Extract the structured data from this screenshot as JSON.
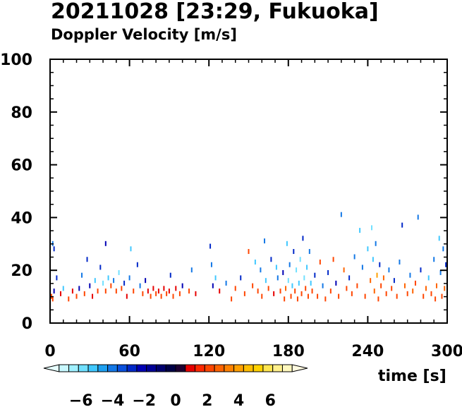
{
  "chart_data": {
    "type": "heatmap",
    "title": "20211028 [23:29, Fukuoka]",
    "subtitle": "Doppler Velocity [m/s]",
    "xlabel": "time [s]",
    "ylabel": "",
    "xlim": [
      0,
      300
    ],
    "ylim": [
      0,
      100
    ],
    "x_ticks": [
      0,
      60,
      120,
      180,
      240,
      300
    ],
    "y_ticks": [
      0,
      20,
      40,
      60,
      80,
      100
    ],
    "grid": false,
    "colorbar": {
      "range": [
        -8,
        8
      ],
      "ticks": [
        "−6",
        "−4",
        "−2",
        "0",
        "2",
        "4",
        "6"
      ],
      "tick_values": [
        -6,
        -4,
        -2,
        0,
        2,
        4,
        6
      ],
      "colors": [
        "#e6ffff",
        "#c8f8ff",
        "#a0f0ff",
        "#70e0ff",
        "#40c8ff",
        "#1ea0f0",
        "#1478e6",
        "#0a50dc",
        "#0028c8",
        "#0000b4",
        "#000096",
        "#00006e",
        "#000046",
        "#1e0032",
        "#e60000",
        "#ff2800",
        "#ff4600",
        "#ff6400",
        "#ff8200",
        "#ffa000",
        "#ffbe00",
        "#ffd200",
        "#ffe650",
        "#fff08c",
        "#fff8be",
        "#fffae0"
      ]
    },
    "points": [
      [
        1,
        10,
        2
      ],
      [
        2,
        9,
        2
      ],
      [
        3,
        12,
        -2
      ],
      [
        5,
        17,
        -3
      ],
      [
        2,
        30,
        -4
      ],
      [
        3,
        28,
        -3
      ],
      [
        8,
        11,
        1
      ],
      [
        10,
        13,
        -5
      ],
      [
        14,
        9,
        2
      ],
      [
        17,
        12,
        1
      ],
      [
        20,
        10,
        2
      ],
      [
        22,
        13,
        -2
      ],
      [
        24,
        18,
        -4
      ],
      [
        26,
        11,
        2
      ],
      [
        28,
        24,
        -3
      ],
      [
        30,
        14,
        -2
      ],
      [
        32,
        10,
        1
      ],
      [
        34,
        16,
        -5
      ],
      [
        36,
        12,
        2
      ],
      [
        38,
        21,
        -3
      ],
      [
        40,
        15,
        -6
      ],
      [
        42,
        12,
        2
      ],
      [
        42,
        30,
        -2
      ],
      [
        44,
        17,
        -5
      ],
      [
        46,
        14,
        2
      ],
      [
        48,
        16,
        -4
      ],
      [
        50,
        12,
        2
      ],
      [
        52,
        19,
        -6
      ],
      [
        54,
        13,
        2
      ],
      [
        56,
        15,
        -3
      ],
      [
        58,
        10,
        1
      ],
      [
        60,
        17,
        -4
      ],
      [
        61,
        28,
        -5
      ],
      [
        63,
        12,
        2
      ],
      [
        66,
        22,
        -3
      ],
      [
        68,
        14,
        -4
      ],
      [
        70,
        11,
        2
      ],
      [
        72,
        16,
        -2
      ],
      [
        74,
        12,
        1
      ],
      [
        76,
        10,
        2
      ],
      [
        78,
        13,
        1
      ],
      [
        80,
        11,
        2
      ],
      [
        82,
        12,
        1
      ],
      [
        84,
        10,
        2
      ],
      [
        86,
        13,
        1
      ],
      [
        88,
        11,
        2
      ],
      [
        90,
        12,
        1
      ],
      [
        91,
        18,
        -3
      ],
      [
        93,
        10,
        2
      ],
      [
        95,
        13,
        1
      ],
      [
        98,
        11,
        2
      ],
      [
        100,
        14,
        -2
      ],
      [
        105,
        12,
        2
      ],
      [
        107,
        20,
        -4
      ],
      [
        110,
        11,
        1
      ],
      [
        121,
        29,
        -3
      ],
      [
        122,
        22,
        -4
      ],
      [
        123,
        14,
        -2
      ],
      [
        125,
        17,
        -5
      ],
      [
        128,
        12,
        1
      ],
      [
        133,
        15,
        -4
      ],
      [
        137,
        9,
        2
      ],
      [
        140,
        13,
        2
      ],
      [
        144,
        17,
        -3
      ],
      [
        147,
        11,
        2
      ],
      [
        150,
        27,
        2
      ],
      [
        153,
        14,
        2
      ],
      [
        155,
        23,
        -5
      ],
      [
        157,
        12,
        2
      ],
      [
        159,
        20,
        -4
      ],
      [
        160,
        10,
        2
      ],
      [
        162,
        31,
        -4
      ],
      [
        163,
        16,
        -5
      ],
      [
        165,
        13,
        2
      ],
      [
        167,
        24,
        -3
      ],
      [
        169,
        11,
        1
      ],
      [
        171,
        21,
        -5
      ],
      [
        172,
        17,
        -4
      ],
      [
        174,
        12,
        2
      ],
      [
        176,
        19,
        -2
      ],
      [
        177,
        9,
        2
      ],
      [
        178,
        13,
        3
      ],
      [
        179,
        30,
        -5
      ],
      [
        180,
        16,
        -6
      ],
      [
        181,
        22,
        -4
      ],
      [
        182,
        10,
        2
      ],
      [
        183,
        14,
        -5
      ],
      [
        184,
        27,
        -3
      ],
      [
        185,
        12,
        2
      ],
      [
        186,
        20,
        -6
      ],
      [
        187,
        9,
        2
      ],
      [
        188,
        15,
        -5
      ],
      [
        189,
        24,
        -6
      ],
      [
        190,
        11,
        2
      ],
      [
        191,
        32,
        -3
      ],
      [
        192,
        17,
        -6
      ],
      [
        193,
        13,
        2
      ],
      [
        194,
        21,
        -5
      ],
      [
        195,
        10,
        2
      ],
      [
        196,
        27,
        -4
      ],
      [
        197,
        15,
        -5
      ],
      [
        198,
        12,
        2
      ],
      [
        200,
        18,
        -3
      ],
      [
        202,
        10,
        2
      ],
      [
        204,
        23,
        2
      ],
      [
        206,
        14,
        -4
      ],
      [
        208,
        9,
        2
      ],
      [
        210,
        19,
        -3
      ],
      [
        212,
        12,
        2
      ],
      [
        214,
        24,
        2
      ],
      [
        216,
        15,
        -2
      ],
      [
        218,
        10,
        2
      ],
      [
        220,
        41,
        -4
      ],
      [
        222,
        20,
        3
      ],
      [
        224,
        13,
        2
      ],
      [
        226,
        17,
        -3
      ],
      [
        228,
        11,
        2
      ],
      [
        230,
        25,
        -4
      ],
      [
        232,
        14,
        2
      ],
      [
        234,
        35,
        -5
      ],
      [
        236,
        21,
        -4
      ],
      [
        238,
        10,
        2
      ],
      [
        240,
        28,
        -5
      ],
      [
        242,
        16,
        3
      ],
      [
        243,
        36,
        -6
      ],
      [
        244,
        24,
        -5
      ],
      [
        245,
        12,
        3
      ],
      [
        246,
        30,
        -4
      ],
      [
        247,
        18,
        4
      ],
      [
        248,
        9,
        2
      ],
      [
        249,
        22,
        -3
      ],
      [
        250,
        14,
        2
      ],
      [
        252,
        17,
        3
      ],
      [
        254,
        11,
        2
      ],
      [
        256,
        20,
        -4
      ],
      [
        258,
        13,
        2
      ],
      [
        260,
        16,
        -3
      ],
      [
        262,
        10,
        2
      ],
      [
        264,
        23,
        -4
      ],
      [
        266,
        37,
        -3
      ],
      [
        268,
        14,
        3
      ],
      [
        270,
        11,
        2
      ],
      [
        272,
        18,
        -4
      ],
      [
        274,
        12,
        3
      ],
      [
        276,
        15,
        2
      ],
      [
        278,
        40,
        -4
      ],
      [
        280,
        20,
        -3
      ],
      [
        282,
        10,
        2
      ],
      [
        284,
        13,
        3
      ],
      [
        286,
        17,
        -5
      ],
      [
        288,
        11,
        2
      ],
      [
        290,
        24,
        -4
      ],
      [
        292,
        14,
        3
      ],
      [
        294,
        32,
        -5
      ],
      [
        295,
        19,
        -4
      ],
      [
        296,
        10,
        2
      ],
      [
        298,
        13,
        3
      ],
      [
        299,
        22,
        -3
      ],
      [
        297,
        28,
        -4
      ],
      [
        291,
        9,
        2
      ]
    ]
  }
}
